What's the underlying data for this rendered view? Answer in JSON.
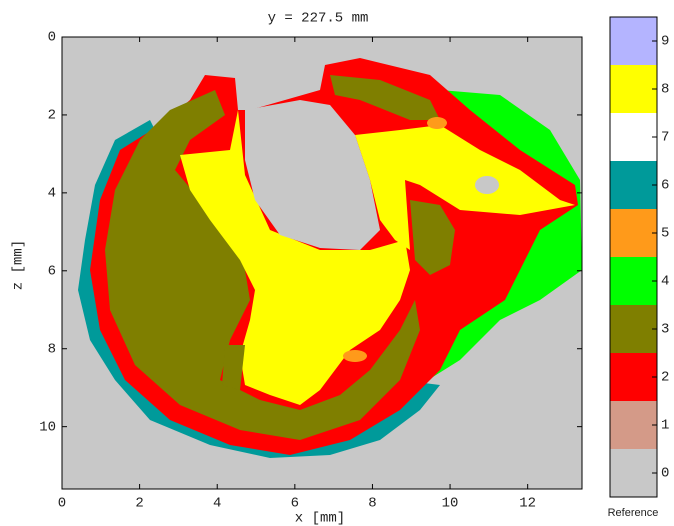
{
  "chart_data": {
    "type": "image",
    "title": "y = 227.5 mm",
    "x_label": "x  [mm]",
    "y_label": "z [mm]",
    "xlim": [
      0,
      13.4
    ],
    "ylim": [
      11.6,
      0
    ],
    "xticks": [
      0,
      2,
      4,
      6,
      8,
      10,
      12
    ],
    "yticks": [
      0,
      2,
      4,
      6,
      8,
      10
    ],
    "colorbar": {
      "label": "Reference",
      "categories": [
        "0",
        "1",
        "2",
        "3",
        "4",
        "5",
        "6",
        "7",
        "8",
        "9"
      ],
      "colors": [
        "#c8c8c8",
        "#d49a88",
        "#ff0000",
        "#7f7f00",
        "#00ff00",
        "#ff9a1a",
        "#009a9a",
        "#ffffff",
        "#ffff00",
        "#b4b4ff"
      ]
    }
  }
}
